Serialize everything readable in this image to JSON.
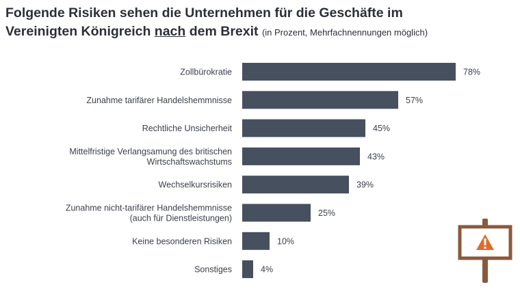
{
  "title": {
    "line1": "Folgende Risiken sehen die Unternehmen für die Geschäfte im",
    "line2_before": "Vereinigten Königreich ",
    "line2_emph": "nach",
    "line2_after": " dem Brexit",
    "note": "(in Prozent, Mehrfachnennungen möglich)"
  },
  "colors": {
    "bar": "#46505f",
    "warning_sign_frame": "#8b5a3a",
    "warning_triangle": "#e06a2c"
  },
  "icons": {
    "sign": "warning-sign-icon"
  },
  "chart_data": {
    "type": "bar",
    "orientation": "horizontal",
    "categories": [
      [
        "Zollbürokratie"
      ],
      [
        "Zunahme tarifärer Handelshemmnisse"
      ],
      [
        "Rechtliche Unsicherheit"
      ],
      [
        "Mittelfristige Verlangsamung des britischen",
        "Wirtschaftswachstums"
      ],
      [
        "Wechselkursrisiken"
      ],
      [
        "Zunahme nicht-tarifärer Handelshemmnisse",
        "(auch für Dienstleistungen)"
      ],
      [
        "Keine besonderen Risiken"
      ],
      [
        "Sonstiges"
      ]
    ],
    "values": [
      78,
      57,
      45,
      43,
      39,
      25,
      10,
      4
    ],
    "value_labels": [
      "78%",
      "57%",
      "45%",
      "43%",
      "39%",
      "25%",
      "10%",
      "4%"
    ],
    "unit": "%",
    "xlim": [
      0,
      100
    ],
    "grid": false
  }
}
